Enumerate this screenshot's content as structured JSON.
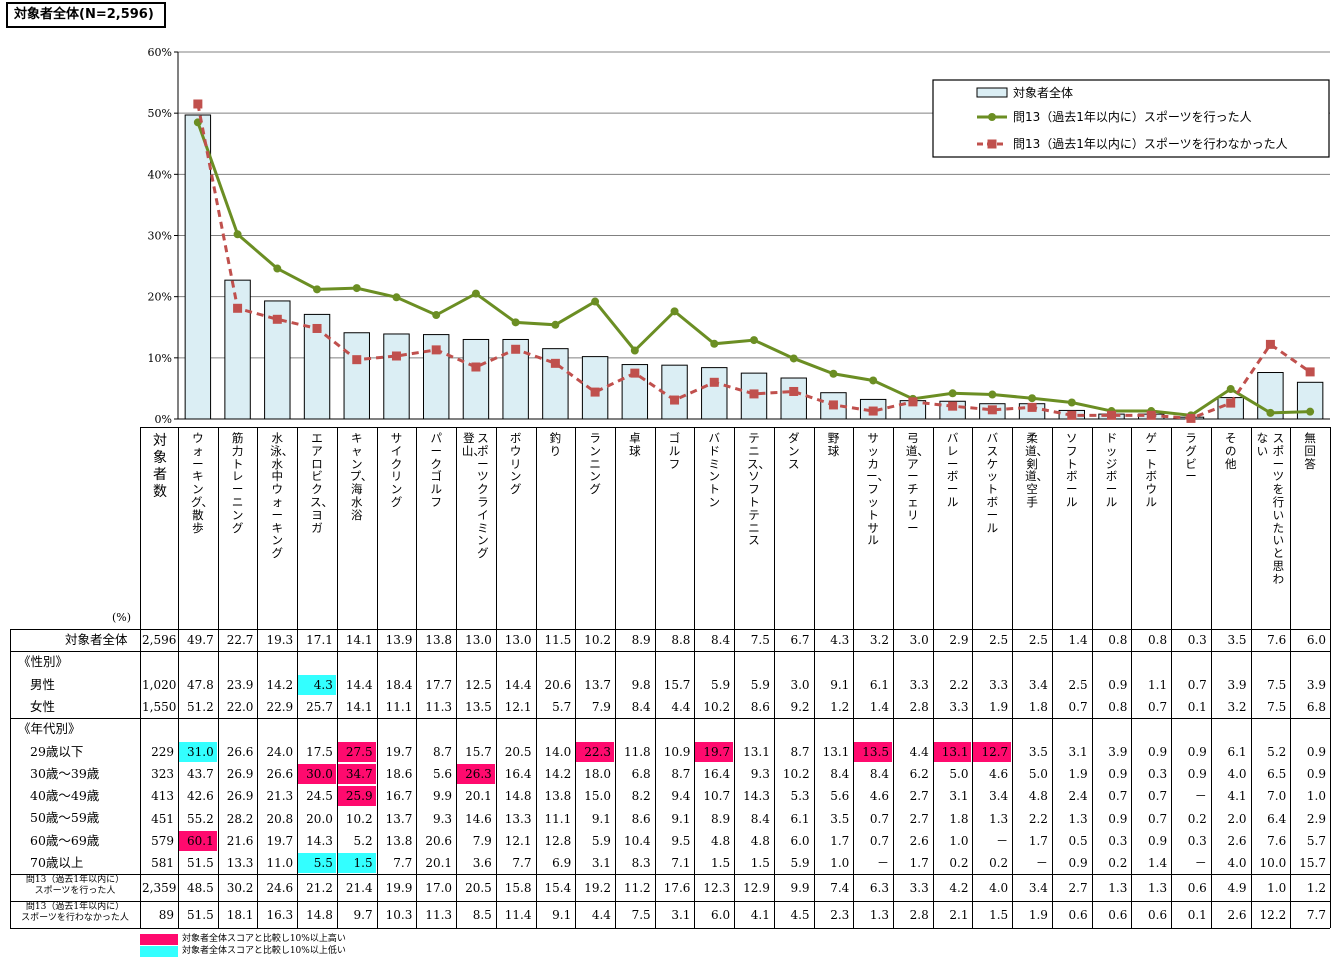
{
  "header": {
    "title": "対象者全体(N=2,596)"
  },
  "chart_data": {
    "type": "bar",
    "ylim": [
      0,
      60
    ],
    "yticks": [
      "0%",
      "10%",
      "20%",
      "30%",
      "40%",
      "50%",
      "60%"
    ],
    "categories": [
      "ウォーキング、散歩",
      "筋力トレーニング",
      "水泳、水中ウォーキング",
      "エアロビクス、ヨガ",
      "キャンプ、海水浴",
      "サイクリング",
      "パークゴルフ",
      "登山、スポーツクライミング",
      "ボウリング",
      "釣り",
      "ランニング",
      "卓球",
      "ゴルフ",
      "バドミントン",
      "テニス、ソフトテニス",
      "ダンス",
      "野球",
      "サッカー、フットサル",
      "弓道、アーチェリー",
      "バレーボール",
      "バスケットボール",
      "柔道、剣道、空手",
      "ソフトボール",
      "ドッジボール",
      "ゲートボウル",
      "ラグビー",
      "その他",
      "スポーツを行いたいと思わない",
      "無回答"
    ],
    "series": [
      {
        "name": "対象者全体",
        "kind": "bar",
        "color": "#dbeef4",
        "values": [
          49.7,
          22.7,
          19.3,
          17.1,
          14.1,
          13.9,
          13.8,
          13.0,
          13.0,
          11.5,
          10.2,
          8.9,
          8.8,
          8.4,
          7.5,
          6.7,
          4.3,
          3.2,
          3.0,
          2.9,
          2.5,
          2.5,
          1.4,
          0.8,
          0.8,
          0.3,
          3.5,
          7.6,
          6.0
        ]
      },
      {
        "name": "問13（過去1年以内に）スポーツを行った人",
        "kind": "line",
        "color": "#6b8e23",
        "values": [
          48.5,
          30.2,
          24.6,
          21.2,
          21.4,
          19.9,
          17.0,
          20.5,
          15.8,
          15.4,
          19.2,
          11.2,
          17.6,
          12.3,
          12.9,
          9.9,
          7.4,
          6.3,
          3.3,
          4.2,
          4.0,
          3.4,
          2.7,
          1.3,
          1.3,
          0.6,
          4.9,
          1.0,
          1.2
        ]
      },
      {
        "name": "問13（過去1年以内に）スポーツを行わなかった人",
        "kind": "line-dashed",
        "color": "#c0504d",
        "values": [
          51.5,
          18.1,
          16.3,
          14.8,
          9.7,
          10.3,
          11.3,
          8.5,
          11.4,
          9.1,
          4.4,
          7.5,
          3.1,
          6.0,
          4.1,
          4.5,
          2.3,
          1.3,
          2.8,
          2.1,
          1.5,
          1.9,
          0.6,
          0.6,
          0.6,
          0.1,
          2.6,
          12.2,
          7.7
        ]
      }
    ]
  },
  "table": {
    "unit": "(%)",
    "count_header": "対象者数",
    "rows": [
      {
        "label": "対象者全体",
        "n": "2,596",
        "vals": [
          "49.7",
          "22.7",
          "19.3",
          "17.1",
          "14.1",
          "13.9",
          "13.8",
          "13.0",
          "13.0",
          "11.5",
          "10.2",
          "8.9",
          "8.8",
          "8.4",
          "7.5",
          "6.7",
          "4.3",
          "3.2",
          "3.0",
          "2.9",
          "2.5",
          "2.5",
          "1.4",
          "0.8",
          "0.8",
          "0.3",
          "3.5",
          "7.6",
          "6.0"
        ],
        "hl": {}
      },
      {
        "label": "《性別》",
        "section": true
      },
      {
        "label": "男性",
        "n": "1,020",
        "vals": [
          "47.8",
          "23.9",
          "14.2",
          "4.3",
          "14.4",
          "18.4",
          "17.7",
          "12.5",
          "14.4",
          "20.6",
          "13.7",
          "9.8",
          "15.7",
          "5.9",
          "5.9",
          "3.0",
          "9.1",
          "6.1",
          "3.3",
          "2.2",
          "3.3",
          "3.4",
          "2.5",
          "0.9",
          "1.1",
          "0.7",
          "3.9",
          "7.5",
          "3.9"
        ],
        "hl": {
          "3": "low"
        }
      },
      {
        "label": "女性",
        "n": "1,550",
        "vals": [
          "51.2",
          "22.0",
          "22.9",
          "25.7",
          "14.1",
          "11.1",
          "11.3",
          "13.5",
          "12.1",
          "5.7",
          "7.9",
          "8.4",
          "4.4",
          "10.2",
          "8.6",
          "9.2",
          "1.2",
          "1.4",
          "2.8",
          "3.3",
          "1.9",
          "1.8",
          "0.7",
          "0.8",
          "0.7",
          "0.1",
          "3.2",
          "7.5",
          "6.8"
        ],
        "hl": {}
      },
      {
        "label": "《年代別》",
        "section": true
      },
      {
        "label": "29歳以下",
        "n": "229",
        "vals": [
          "31.0",
          "26.6",
          "24.0",
          "17.5",
          "27.5",
          "19.7",
          "8.7",
          "15.7",
          "20.5",
          "14.0",
          "22.3",
          "11.8",
          "10.9",
          "19.7",
          "13.1",
          "8.7",
          "13.1",
          "13.5",
          "4.4",
          "13.1",
          "12.7",
          "3.5",
          "3.1",
          "3.9",
          "0.9",
          "0.9",
          "6.1",
          "5.2",
          "0.9"
        ],
        "hl": {
          "0": "low",
          "4": "high",
          "10": "high",
          "13": "high",
          "17": "high",
          "19": "high",
          "20": "high"
        }
      },
      {
        "label": "30歳～39歳",
        "n": "323",
        "vals": [
          "43.7",
          "26.9",
          "26.6",
          "30.0",
          "34.7",
          "18.6",
          "5.6",
          "26.3",
          "16.4",
          "14.2",
          "18.0",
          "6.8",
          "8.7",
          "16.4",
          "9.3",
          "10.2",
          "8.4",
          "8.4",
          "6.2",
          "5.0",
          "4.6",
          "5.0",
          "1.9",
          "0.9",
          "0.3",
          "0.9",
          "4.0",
          "6.5",
          "0.9"
        ],
        "hl": {
          "3": "high",
          "4": "high",
          "7": "high"
        }
      },
      {
        "label": "40歳～49歳",
        "n": "413",
        "vals": [
          "42.6",
          "26.9",
          "21.3",
          "24.5",
          "25.9",
          "16.7",
          "9.9",
          "20.1",
          "14.8",
          "13.8",
          "15.0",
          "8.2",
          "9.4",
          "10.7",
          "14.3",
          "5.3",
          "5.6",
          "4.6",
          "2.7",
          "3.1",
          "3.4",
          "4.8",
          "2.4",
          "0.7",
          "0.7",
          "－",
          "4.1",
          "7.0",
          "1.0"
        ],
        "hl": {
          "4": "high"
        }
      },
      {
        "label": "50歳～59歳",
        "n": "451",
        "vals": [
          "55.2",
          "28.2",
          "20.8",
          "20.0",
          "10.2",
          "13.7",
          "9.3",
          "14.6",
          "13.3",
          "11.1",
          "9.1",
          "8.6",
          "9.1",
          "8.9",
          "8.4",
          "6.1",
          "3.5",
          "0.7",
          "2.7",
          "1.8",
          "1.3",
          "2.2",
          "1.3",
          "0.9",
          "0.7",
          "0.2",
          "2.0",
          "6.4",
          "2.9"
        ],
        "hl": {}
      },
      {
        "label": "60歳～69歳",
        "n": "579",
        "vals": [
          "60.1",
          "21.6",
          "19.7",
          "14.3",
          "5.2",
          "13.8",
          "20.6",
          "7.9",
          "12.1",
          "12.8",
          "5.9",
          "10.4",
          "9.5",
          "4.8",
          "4.8",
          "6.0",
          "1.7",
          "0.7",
          "2.6",
          "1.0",
          "－",
          "1.7",
          "0.5",
          "0.3",
          "0.9",
          "0.3",
          "2.6",
          "7.6",
          "5.7"
        ],
        "hl": {
          "0": "high"
        }
      },
      {
        "label": "70歳以上",
        "n": "581",
        "vals": [
          "51.5",
          "13.3",
          "11.0",
          "5.5",
          "1.5",
          "7.7",
          "20.1",
          "3.6",
          "7.7",
          "6.9",
          "3.1",
          "8.3",
          "7.1",
          "1.5",
          "1.5",
          "5.9",
          "1.0",
          "－",
          "1.7",
          "0.2",
          "0.2",
          "－",
          "0.9",
          "0.2",
          "1.4",
          "－",
          "4.0",
          "10.0",
          "15.7"
        ],
        "hl": {
          "3": "low",
          "4": "low"
        }
      },
      {
        "label": "問13（過去1年以内に）スポーツを行った人",
        "n": "2,359",
        "small": true,
        "vals": [
          "48.5",
          "30.2",
          "24.6",
          "21.2",
          "21.4",
          "19.9",
          "17.0",
          "20.5",
          "15.8",
          "15.4",
          "19.2",
          "11.2",
          "17.6",
          "12.3",
          "12.9",
          "9.9",
          "7.4",
          "6.3",
          "3.3",
          "4.2",
          "4.0",
          "3.4",
          "2.7",
          "1.3",
          "1.3",
          "0.6",
          "4.9",
          "1.0",
          "1.2"
        ],
        "hl": {}
      },
      {
        "label": "問13（過去1年以内に）スポーツを行わなかった人",
        "n": "89",
        "small": true,
        "vals": [
          "51.5",
          "18.1",
          "16.3",
          "14.8",
          "9.7",
          "10.3",
          "11.3",
          "8.5",
          "11.4",
          "9.1",
          "4.4",
          "7.5",
          "3.1",
          "6.0",
          "4.1",
          "4.5",
          "2.3",
          "1.3",
          "2.8",
          "2.1",
          "1.5",
          "1.9",
          "0.6",
          "0.6",
          "0.6",
          "0.1",
          "2.6",
          "12.2",
          "7.7"
        ],
        "hl": {}
      }
    ]
  },
  "notes": {
    "high": "対象者全体スコアと比較し10%以上高い",
    "low": "対象者全体スコアと比較し10%以上低い",
    "high_color": "#ff0a6e",
    "low_color": "#33ffff"
  }
}
